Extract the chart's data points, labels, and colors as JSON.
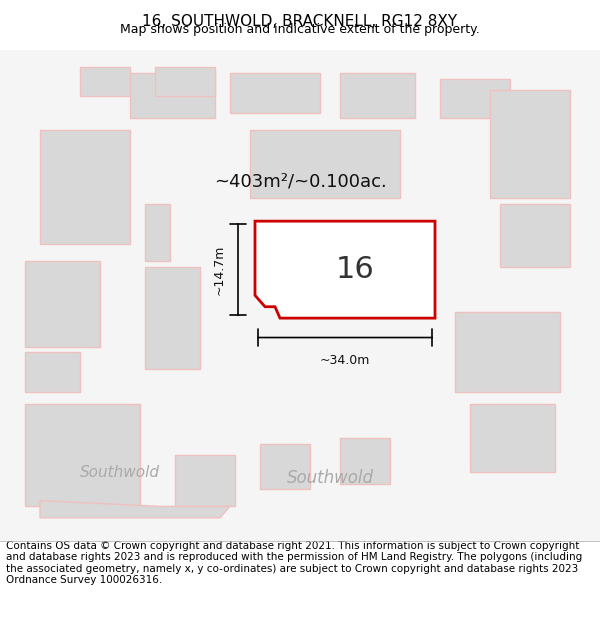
{
  "title": "16, SOUTHWOLD, BRACKNELL, RG12 8XY",
  "subtitle": "Map shows position and indicative extent of the property.",
  "footer": "Contains OS data © Crown copyright and database right 2021. This information is subject to Crown copyright and database rights 2023 and is reproduced with the permission of HM Land Registry. The polygons (including the associated geometry, namely x, y co-ordinates) are subject to Crown copyright and database rights 2023 Ordnance Survey 100026316.",
  "area_label": "~403m²/~0.100ac.",
  "width_label": "~34.0m",
  "height_label": "~14.7m",
  "house_number": "16",
  "map_bg": "#f5f5f5",
  "main_polygon_color": "#cc0000",
  "neighbor_color": "#f0c0c0",
  "neighbor_fill": "#e8e8e8",
  "street_label": "Southwold",
  "title_fontsize": 11,
  "subtitle_fontsize": 9,
  "footer_fontsize": 7.5
}
